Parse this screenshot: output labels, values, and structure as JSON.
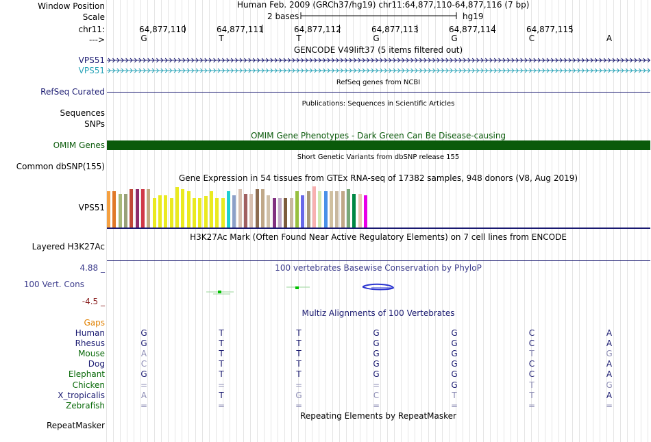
{
  "header": {
    "window_position_label": "Window Position",
    "assembly_text": "Human Feb. 2009 (GRCh37/hg19)   chr11:64,877,110-64,877,116 (7 bp)",
    "scale_label": "Scale",
    "scale_text": "2 bases",
    "scale_assembly": "hg19",
    "chrom_label": "chr11:",
    "arrow_label": "--->"
  },
  "ruler": {
    "positions": [
      "64,877,110",
      "64,877,111",
      "64,877,112",
      "64,877,113",
      "64,877,114",
      "64,877,115"
    ],
    "bases": [
      "G",
      "T",
      "T",
      "G",
      "G",
      "C",
      "A"
    ]
  },
  "tracks": {
    "gencode_title": "GENCODE V49lift37 (5 items filtered out)",
    "vps51_a": "VPS51",
    "vps51_b": "VPS51",
    "refseq_title": "RefSeq genes from NCBI",
    "refseq_label": "RefSeq Curated",
    "publications_title": "Publications: Sequences in Scientific Articles",
    "sequences_label": "Sequences",
    "snps_label": "SNPs",
    "omim_title": "OMIM Gene Phenotypes - Dark Green Can Be Disease-causing",
    "omim_label": "OMIM Genes",
    "dbsnp_title": "Short Genetic Variants from dbSNP release 155",
    "dbsnp_label": "Common dbSNP(155)",
    "gtex_title": "Gene Expression in 54 tissues from GTEx RNA-seq of 17382 samples, 948 donors (V8, Aug 2019)",
    "gtex_label": "VPS51",
    "h3k27_title": "H3K27Ac Mark (Often Found Near Active Regulatory Elements) on 7 cell lines from ENCODE",
    "h3k27_label": "Layered H3K27Ac",
    "phylop_title": "100 vertebrates Basewise Conservation by PhyloP",
    "phylop_max": "4.88 _",
    "phylop_label": "100 Vert. Cons",
    "phylop_min": "-4.5 _",
    "multiz_title": "Multiz Alignments of 100 Vertebrates",
    "gaps_label": "Gaps",
    "repeat_title": "Repeating Elements by RepeatMasker",
    "repeat_label": "RepeatMasker"
  },
  "colors": {
    "navy": "#191970",
    "teal": "#2aa4b8",
    "omim_green": "#0a5a0a",
    "gaps_orange": "#e08000",
    "phylop_blue": "#3c3c8c",
    "phylop_red": "#8b2222",
    "species_green": "#0a6a0a",
    "grey_base": "#8c8cb4"
  },
  "gtex_bars": [
    {
      "color": "#f5a040",
      "level": 0.88
    },
    {
      "color": "#e07828",
      "level": 0.88
    },
    {
      "color": "#a8b878",
      "level": 0.82
    },
    {
      "color": "#98a078",
      "level": 0.82
    },
    {
      "color": "#c04838",
      "level": 0.93
    },
    {
      "color": "#8c2c6c",
      "level": 0.93
    },
    {
      "color": "#d03848",
      "level": 0.93
    },
    {
      "color": "#c0a880",
      "level": 0.93
    },
    {
      "color": "#eaea20",
      "level": 0.72
    },
    {
      "color": "#eaea20",
      "level": 0.78
    },
    {
      "color": "#eaea20",
      "level": 0.78
    },
    {
      "color": "#eaea20",
      "level": 0.72
    },
    {
      "color": "#eaea20",
      "level": 0.98
    },
    {
      "color": "#eaea20",
      "level": 0.93
    },
    {
      "color": "#eaea20",
      "level": 0.88
    },
    {
      "color": "#eaea20",
      "level": 0.72
    },
    {
      "color": "#eaea20",
      "level": 0.72
    },
    {
      "color": "#eaea20",
      "level": 0.76
    },
    {
      "color": "#eaea20",
      "level": 0.88
    },
    {
      "color": "#eaea20",
      "level": 0.72
    },
    {
      "color": "#eaea20",
      "level": 0.72
    },
    {
      "color": "#20d0d0",
      "level": 0.88
    },
    {
      "color": "#8ca0c8",
      "level": 0.78
    },
    {
      "color": "#d8c0b0",
      "level": 0.93
    },
    {
      "color": "#a06060",
      "level": 0.82
    },
    {
      "color": "#d8c0b0",
      "level": 0.82
    },
    {
      "color": "#8c6c50",
      "level": 0.93
    },
    {
      "color": "#c0a888",
      "level": 0.93
    },
    {
      "color": "#d0c0a8",
      "level": 0.78
    },
    {
      "color": "#803080",
      "level": 0.72
    },
    {
      "color": "#c0a8c8",
      "level": 0.72
    },
    {
      "color": "#7c5c3c",
      "level": 0.72
    },
    {
      "color": "#c8b8a0",
      "level": 0.72
    },
    {
      "color": "#98c040",
      "level": 0.88
    },
    {
      "color": "#6868e8",
      "level": 0.78
    },
    {
      "color": "#a89878",
      "level": 0.88
    },
    {
      "color": "#f8b0b0",
      "level": 1.0
    },
    {
      "color": "#d0e8b0",
      "level": 0.88
    },
    {
      "color": "#4890e8",
      "level": 0.88
    },
    {
      "color": "#d0c0a0",
      "level": 0.88
    },
    {
      "color": "#c8b8a0",
      "level": 0.88
    },
    {
      "color": "#c0a888",
      "level": 0.88
    },
    {
      "color": "#78a878",
      "level": 0.93
    },
    {
      "color": "#008844",
      "level": 0.82
    },
    {
      "color": "#e8c8b0",
      "level": 0.82
    },
    {
      "color": "#e800e8",
      "level": 0.78
    }
  ],
  "multiz": {
    "species": [
      {
        "name": "Human",
        "color": "#191970",
        "bases": [
          "G",
          "T",
          "T",
          "G",
          "G",
          "C",
          "A"
        ],
        "grey": [
          false,
          false,
          false,
          false,
          false,
          false,
          false
        ]
      },
      {
        "name": "Rhesus",
        "color": "#191970",
        "bases": [
          "G",
          "T",
          "T",
          "G",
          "G",
          "C",
          "A"
        ],
        "grey": [
          false,
          false,
          false,
          false,
          false,
          false,
          false
        ]
      },
      {
        "name": "Mouse",
        "color": "#0a6a0a",
        "bases": [
          "A",
          "T",
          "T",
          "G",
          "G",
          "T",
          "G"
        ],
        "grey": [
          true,
          false,
          false,
          false,
          false,
          true,
          true
        ]
      },
      {
        "name": "Dog",
        "color": "#191970",
        "bases": [
          "C",
          "T",
          "T",
          "G",
          "G",
          "C",
          "A"
        ],
        "grey": [
          true,
          false,
          false,
          false,
          false,
          false,
          false
        ]
      },
      {
        "name": "Elephant",
        "color": "#0a6a0a",
        "bases": [
          "G",
          "T",
          "T",
          "G",
          "G",
          "C",
          "A"
        ],
        "grey": [
          false,
          false,
          false,
          false,
          false,
          false,
          false
        ]
      },
      {
        "name": "Chicken",
        "color": "#0a6a0a",
        "bases": [
          "=",
          "=",
          "=",
          "=",
          "G",
          "T",
          "G"
        ],
        "grey": [
          true,
          true,
          true,
          true,
          false,
          true,
          true
        ]
      },
      {
        "name": "X_tropicalis",
        "color": "#191970",
        "bases": [
          "A",
          "T",
          "G",
          "C",
          "T",
          "T",
          "A"
        ],
        "grey": [
          true,
          false,
          true,
          true,
          true,
          true,
          false
        ]
      },
      {
        "name": "Zebrafish",
        "color": "#0a6a0a",
        "bases": [
          "=",
          "=",
          "=",
          "=",
          "=",
          "=",
          "="
        ],
        "grey": [
          true,
          true,
          true,
          true,
          true,
          true,
          true
        ]
      }
    ]
  }
}
